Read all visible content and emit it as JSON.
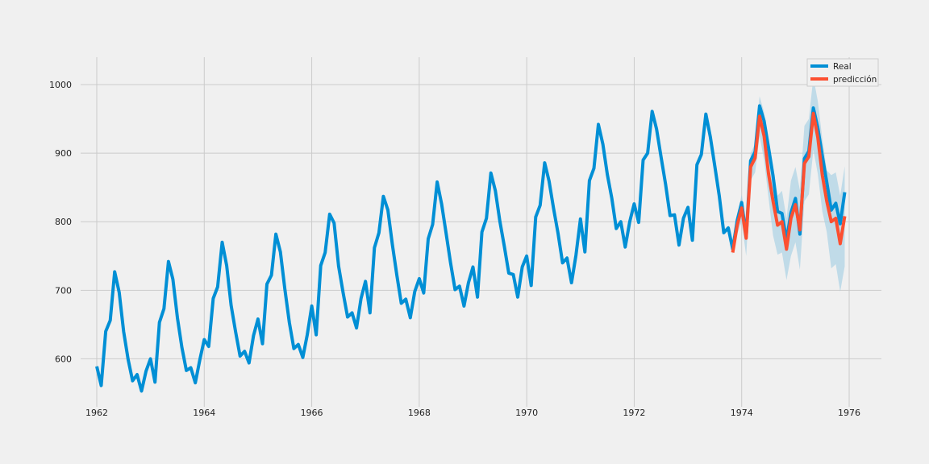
{
  "chart_data": {
    "type": "line",
    "title": "",
    "xlabel": "",
    "ylabel": "",
    "xlim": [
      1961.7,
      1976.6
    ],
    "ylim": [
      530,
      1040
    ],
    "xticks": [
      "1962",
      "1964",
      "1966",
      "1968",
      "1970",
      "1972",
      "1974",
      "1976"
    ],
    "yticks": [
      "600",
      "700",
      "800",
      "900",
      "1000"
    ],
    "grid": true,
    "legend_position": "top-right",
    "colors": {
      "real": "#008fd5",
      "prediction": "#fc4f30",
      "band": "#a6cfe4",
      "grid": "#cbcbcb",
      "background": "#f0f0f0"
    },
    "series": [
      {
        "name": "Real",
        "x_start": "1962-01",
        "frequency": "monthly",
        "values": [
          589,
          561,
          640,
          656,
          727,
          697,
          640,
          599,
          568,
          577,
          553,
          582,
          600,
          566,
          653,
          673,
          742,
          716,
          660,
          617,
          583,
          587,
          565,
          598,
          628,
          618,
          688,
          705,
          770,
          736,
          678,
          639,
          604,
          611,
          594,
          634,
          658,
          622,
          709,
          722,
          782,
          756,
          702,
          653,
          615,
          621,
          602,
          635,
          677,
          635,
          736,
          755,
          811,
          798,
          735,
          697,
          661,
          667,
          645,
          688,
          713,
          667,
          762,
          784,
          837,
          817,
          767,
          722,
          681,
          687,
          660,
          698,
          717,
          696,
          775,
          796,
          858,
          826,
          783,
          740,
          701,
          706,
          677,
          711,
          734,
          690,
          785,
          805,
          871,
          845,
          801,
          764,
          725,
          723,
          690,
          734,
          750,
          707,
          807,
          824,
          886,
          859,
          819,
          783,
          740,
          747,
          711,
          751,
          804,
          756,
          860,
          878,
          942,
          913,
          869,
          834,
          790,
          800,
          763,
          800,
          826,
          799,
          890,
          900,
          961,
          935,
          894,
          855,
          809,
          810,
          766,
          805,
          821,
          773,
          883,
          898,
          957,
          924,
          881,
          837,
          784,
          791,
          760,
          802,
          828,
          778,
          889,
          902,
          969,
          947,
          908,
          867,
          815,
          812,
          773,
          813,
          834,
          782,
          892,
          903,
          966,
          937,
          896,
          858,
          817,
          827,
          797,
          843
        ]
      },
      {
        "name": "predicción",
        "x_start": "1973-11",
        "frequency": "monthly",
        "values": [
          755,
          795,
          820,
          776,
          880,
          893,
          954,
          925,
          870,
          830,
          795,
          800,
          760,
          805,
          825,
          788,
          885,
          895,
          958,
          923,
          868,
          830,
          800,
          805,
          768,
          808
        ],
        "ci_lower": [
          752,
          782,
          800,
          750,
          860,
          872,
          925,
          890,
          835,
          780,
          752,
          755,
          715,
          750,
          770,
          730,
          830,
          840,
          905,
          870,
          815,
          785,
          732,
          738,
          698,
          735
        ],
        "ci_upper": [
          758,
          808,
          840,
          800,
          900,
          914,
          983,
          960,
          905,
          880,
          838,
          845,
          805,
          860,
          880,
          846,
          940,
          950,
          1011,
          976,
          921,
          875,
          868,
          872,
          838,
          881
        ]
      }
    ]
  }
}
